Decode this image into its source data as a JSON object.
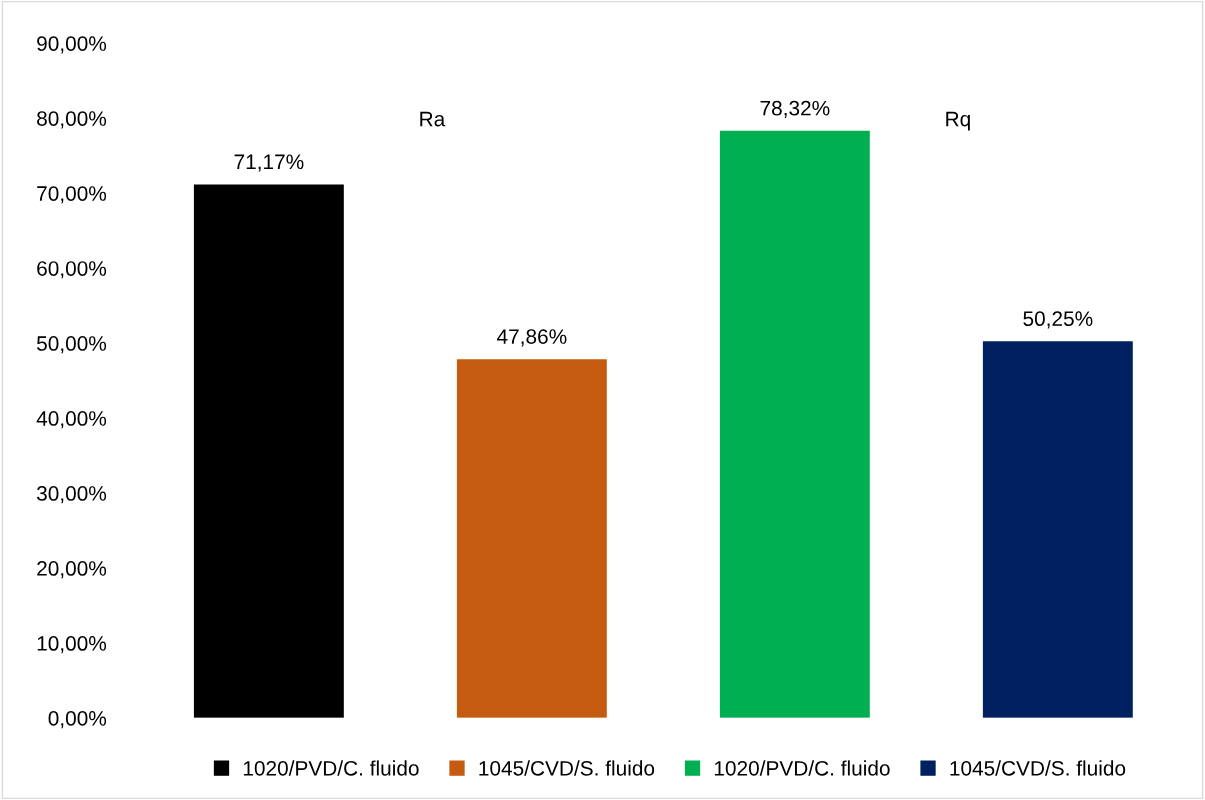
{
  "chart_data": {
    "type": "bar",
    "categories": [
      null,
      null,
      null,
      null
    ],
    "tick_labels": "y",
    "series": [
      {
        "name": "1020/PVD/C. fluido",
        "color": "#000000",
        "values": [
          71.17,
          null,
          null,
          null
        ],
        "value_labels": [
          "71,17%",
          null,
          null,
          null
        ]
      },
      {
        "name": "1045/CVD/S. fluido",
        "color": "#c55a11",
        "values": [
          null,
          47.86,
          null,
          null
        ],
        "value_labels": [
          null,
          "47,86%",
          null,
          null
        ]
      },
      {
        "name": "1020/PVD/C. fluido",
        "color": "#00b050",
        "values": [
          null,
          null,
          78.32,
          null
        ],
        "value_labels": [
          null,
          null,
          "78,32%",
          null
        ]
      },
      {
        "name": "1045/CVD/S. fluido",
        "color": "#002060",
        "values": [
          null,
          null,
          null,
          50.25
        ],
        "value_labels": [
          null,
          null,
          null,
          "50,25%"
        ]
      }
    ],
    "annotations": [
      "Ra",
      "Rq"
    ],
    "ylim": [
      0,
      90
    ],
    "yticks": [
      {
        "value": 0,
        "label": "0,00%"
      },
      {
        "value": 10,
        "label": "10,00%"
      },
      {
        "value": 20,
        "label": "20,00%"
      },
      {
        "value": 30,
        "label": "30,00%"
      },
      {
        "value": 40,
        "label": "40,00%"
      },
      {
        "value": 50,
        "label": "50,00%"
      },
      {
        "value": 60,
        "label": "60,00%"
      },
      {
        "value": 70,
        "label": "70,00%"
      },
      {
        "value": 80,
        "label": "80,00%"
      },
      {
        "value": 90,
        "label": "90,00%"
      }
    ],
    "grid": false,
    "legend": "bottom"
  }
}
